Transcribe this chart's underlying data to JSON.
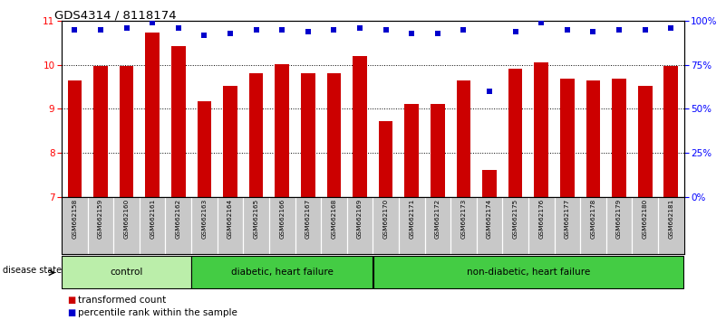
{
  "title": "GDS4314 / 8118174",
  "samples": [
    "GSM662158",
    "GSM662159",
    "GSM662160",
    "GSM662161",
    "GSM662162",
    "GSM662163",
    "GSM662164",
    "GSM662165",
    "GSM662166",
    "GSM662167",
    "GSM662168",
    "GSM662169",
    "GSM662170",
    "GSM662171",
    "GSM662172",
    "GSM662173",
    "GSM662174",
    "GSM662175",
    "GSM662176",
    "GSM662177",
    "GSM662178",
    "GSM662179",
    "GSM662180",
    "GSM662181"
  ],
  "bar_values": [
    9.65,
    9.97,
    9.97,
    10.73,
    10.42,
    9.17,
    9.52,
    9.8,
    10.02,
    9.8,
    9.8,
    10.2,
    8.72,
    9.1,
    9.1,
    9.65,
    7.62,
    9.92,
    10.05,
    9.68,
    9.65,
    9.68,
    9.52,
    9.98
  ],
  "percentile_values": [
    95,
    95,
    96,
    99,
    96,
    92,
    93,
    95,
    95,
    94,
    95,
    96,
    95,
    93,
    93,
    95,
    60,
    94,
    99,
    95,
    94,
    95,
    95,
    96
  ],
  "bar_color": "#cc0000",
  "percentile_color": "#0000cc",
  "ylim_left": [
    7,
    11
  ],
  "ylim_right": [
    0,
    100
  ],
  "yticks_left": [
    7,
    8,
    9,
    10,
    11
  ],
  "yticks_right": [
    0,
    25,
    50,
    75,
    100
  ],
  "background_color": "#ffffff",
  "tick_label_box_color": "#c8c8c8",
  "group_data": [
    {
      "label": "control",
      "start": 0,
      "end": 4,
      "color": "#bbeeaa"
    },
    {
      "label": "diabetic, heart failure",
      "start": 5,
      "end": 11,
      "color": "#44cc44"
    },
    {
      "label": "non-diabetic, heart failure",
      "start": 12,
      "end": 23,
      "color": "#44cc44"
    }
  ],
  "legend_items": [
    {
      "label": "transformed count",
      "color": "#cc0000"
    },
    {
      "label": "percentile rank within the sample",
      "color": "#0000cc"
    }
  ],
  "disease_state_label": "disease state"
}
